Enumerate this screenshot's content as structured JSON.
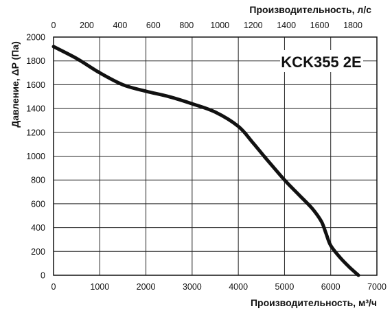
{
  "chart_data": {
    "type": "line",
    "model_label": "KCK355 2E",
    "ylabel": "Давление, ΔP (Па)",
    "xlabel_bottom": "Производительность, м³/ч",
    "xlabel_top": "Производительность, л/с",
    "x_bottom_ticks": [
      "0",
      "1000",
      "2000",
      "3000",
      "4000",
      "5000",
      "6000",
      "7000"
    ],
    "x_top_ticks": [
      "0",
      "200",
      "400",
      "600",
      "800",
      "1000",
      "1200",
      "1400",
      "1600",
      "1800"
    ],
    "y_ticks": [
      "0",
      "200",
      "400",
      "600",
      "800",
      "1000",
      "1200",
      "1400",
      "1600",
      "1800",
      "2000"
    ],
    "xlim": [
      0,
      7000
    ],
    "xlim_top": [
      0,
      1944.4
    ],
    "ylim": [
      0,
      2000
    ],
    "grid": true,
    "series": [
      {
        "x": [
          0,
          500,
          1000,
          1500,
          2000,
          2500,
          3000,
          3500,
          4000,
          4300,
          4600,
          5000,
          5300,
          5600,
          5800,
          5900,
          6000,
          6200,
          6400,
          6600
        ],
        "y": [
          1920,
          1820,
          1700,
          1600,
          1545,
          1500,
          1440,
          1370,
          1250,
          1120,
          980,
          800,
          680,
          560,
          450,
          350,
          250,
          150,
          70,
          0
        ]
      }
    ]
  }
}
